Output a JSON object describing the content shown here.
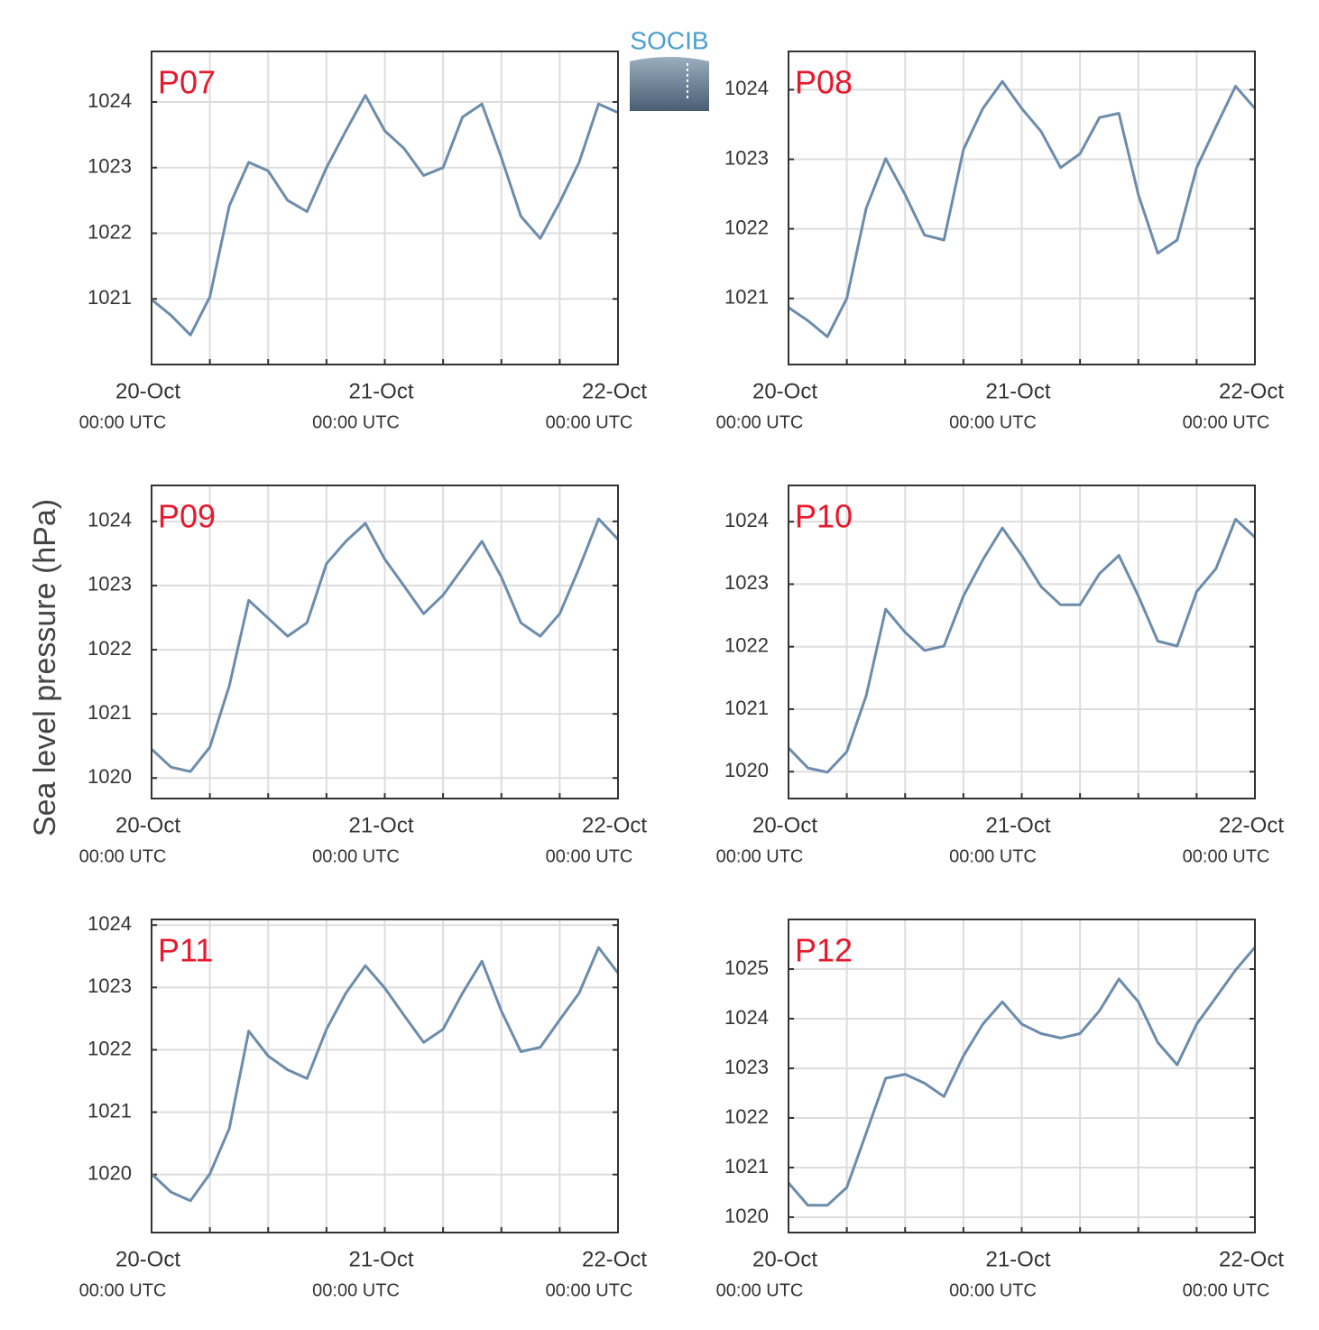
{
  "ylabel": "Sea level pressure (hPa)",
  "logo": "SOCIB",
  "chart_data": [
    {
      "type": "line",
      "title": "P07",
      "x": [
        0,
        2,
        4,
        6,
        8,
        10,
        12,
        14,
        16,
        18,
        20,
        22,
        24,
        26,
        28,
        30,
        32,
        34,
        36,
        38,
        40,
        42,
        44,
        46,
        48
      ],
      "series": [
        {
          "color": "#6c8cac",
          "values": [
            1020.99,
            1020.75,
            1020.45,
            1021.03,
            1022.42,
            1023.08,
            1022.95,
            1022.5,
            1022.33,
            1023.0,
            1023.56,
            1024.1,
            1023.56,
            1023.29,
            1022.88,
            1023.0,
            1023.77,
            1023.97,
            1023.15,
            1022.26,
            1021.92,
            1022.47,
            1023.08,
            1023.97,
            1023.84
          ]
        }
      ],
      "xlim": [
        0,
        48
      ],
      "xticks": [
        {
          "value": 0,
          "label": "20-Oct",
          "sublabel": "00:00 UTC"
        },
        {
          "value": 24,
          "label": "21-Oct",
          "sublabel": "00:00 UTC"
        },
        {
          "value": 48,
          "label": "22-Oct",
          "sublabel": "00:00 UTC"
        }
      ],
      "xminorticks": [
        6,
        12,
        18,
        30,
        36,
        42
      ],
      "ylim": [
        1020.0,
        1024.77
      ],
      "yticks": [
        1021,
        1022,
        1023,
        1024
      ],
      "grid": true
    },
    {
      "type": "line",
      "title": "P08",
      "x": [
        0,
        2,
        4,
        6,
        8,
        10,
        12,
        14,
        16,
        18,
        20,
        22,
        24,
        26,
        28,
        30,
        32,
        34,
        36,
        38,
        40,
        42,
        44,
        46,
        48
      ],
      "series": [
        {
          "color": "#6c8cac",
          "values": [
            1020.87,
            1020.68,
            1020.45,
            1021.0,
            1022.3,
            1023.01,
            1022.49,
            1021.91,
            1021.84,
            1023.14,
            1023.73,
            1024.12,
            1023.73,
            1023.4,
            1022.88,
            1023.08,
            1023.6,
            1023.66,
            1022.49,
            1021.65,
            1021.84,
            1022.88,
            1023.47,
            1024.05,
            1023.73
          ]
        }
      ],
      "xlim": [
        0,
        48
      ],
      "xticks": [
        {
          "value": 0,
          "label": "20-Oct",
          "sublabel": "00:00 UTC"
        },
        {
          "value": 24,
          "label": "21-Oct",
          "sublabel": "00:00 UTC"
        },
        {
          "value": 48,
          "label": "22-Oct",
          "sublabel": "00:00 UTC"
        }
      ],
      "xminorticks": [
        6,
        12,
        18,
        30,
        36,
        42
      ],
      "ylim": [
        1020.05,
        1024.55
      ],
      "yticks": [
        1021,
        1022,
        1023,
        1024
      ],
      "grid": true
    },
    {
      "type": "line",
      "title": "P09",
      "x": [
        0,
        2,
        4,
        6,
        8,
        10,
        12,
        14,
        16,
        18,
        20,
        22,
        24,
        26,
        28,
        30,
        32,
        34,
        36,
        38,
        40,
        42,
        44,
        46,
        48
      ],
      "series": [
        {
          "color": "#6c8cac",
          "values": [
            1020.45,
            1020.17,
            1020.1,
            1020.48,
            1021.44,
            1022.77,
            1022.49,
            1022.21,
            1022.42,
            1023.34,
            1023.69,
            1023.97,
            1023.41,
            1022.99,
            1022.56,
            1022.85,
            1023.27,
            1023.69,
            1023.13,
            1022.42,
            1022.21,
            1022.56,
            1023.27,
            1024.04,
            1023.72
          ]
        }
      ],
      "xlim": [
        0,
        48
      ],
      "xticks": [
        {
          "value": 0,
          "label": "20-Oct",
          "sublabel": "00:00 UTC"
        },
        {
          "value": 24,
          "label": "21-Oct",
          "sublabel": "00:00 UTC"
        },
        {
          "value": 48,
          "label": "22-Oct",
          "sublabel": "00:00 UTC"
        }
      ],
      "xminorticks": [
        6,
        12,
        18,
        30,
        36,
        42
      ],
      "ylim": [
        1019.68,
        1024.56
      ],
      "yticks": [
        1020,
        1021,
        1022,
        1023,
        1024
      ],
      "grid": true
    },
    {
      "type": "line",
      "title": "P10",
      "x": [
        0,
        2,
        4,
        6,
        8,
        10,
        12,
        14,
        16,
        18,
        20,
        22,
        24,
        26,
        28,
        30,
        32,
        34,
        36,
        38,
        40,
        42,
        44,
        46,
        48
      ],
      "series": [
        {
          "color": "#6c8cac",
          "values": [
            1020.38,
            1020.06,
            1019.99,
            1020.32,
            1021.22,
            1022.6,
            1022.23,
            1021.94,
            1022.01,
            1022.81,
            1023.39,
            1023.9,
            1023.46,
            1022.96,
            1022.67,
            1022.67,
            1023.17,
            1023.46,
            1022.81,
            1022.09,
            1022.01,
            1022.88,
            1023.25,
            1024.04,
            1023.75
          ]
        }
      ],
      "xlim": [
        0,
        48
      ],
      "xticks": [
        {
          "value": 0,
          "label": "20-Oct",
          "sublabel": "00:00 UTC"
        },
        {
          "value": 24,
          "label": "21-Oct",
          "sublabel": "00:00 UTC"
        },
        {
          "value": 48,
          "label": "22-Oct",
          "sublabel": "00:00 UTC"
        }
      ],
      "xminorticks": [
        6,
        12,
        18,
        30,
        36,
        42
      ],
      "ylim": [
        1019.57,
        1024.58
      ],
      "yticks": [
        1020,
        1021,
        1022,
        1023,
        1024
      ],
      "grid": true
    },
    {
      "type": "line",
      "title": "P11",
      "x": [
        0,
        2,
        4,
        6,
        8,
        10,
        12,
        14,
        16,
        18,
        20,
        22,
        24,
        26,
        28,
        30,
        32,
        34,
        36,
        38,
        40,
        42,
        44,
        46,
        48
      ],
      "series": [
        {
          "color": "#6c8cac",
          "values": [
            1020.01,
            1019.72,
            1019.58,
            1020.01,
            1020.74,
            1022.3,
            1021.9,
            1021.68,
            1021.54,
            1022.33,
            1022.91,
            1023.35,
            1022.99,
            1022.55,
            1022.12,
            1022.33,
            1022.91,
            1023.42,
            1022.62,
            1021.97,
            1022.04,
            1022.48,
            1022.91,
            1023.64,
            1023.23
          ]
        }
      ],
      "xlim": [
        0,
        48
      ],
      "xticks": [
        {
          "value": 0,
          "label": "20-Oct",
          "sublabel": "00:00 UTC"
        },
        {
          "value": 24,
          "label": "21-Oct",
          "sublabel": "00:00 UTC"
        },
        {
          "value": 48,
          "label": "22-Oct",
          "sublabel": "00:00 UTC"
        }
      ],
      "xminorticks": [
        6,
        12,
        18,
        30,
        36,
        42
      ],
      "ylim": [
        1019.07,
        1024.09
      ],
      "yticks": [
        1020,
        1021,
        1022,
        1023,
        1024
      ],
      "grid": true
    },
    {
      "type": "line",
      "title": "P12",
      "x": [
        0,
        2,
        4,
        6,
        8,
        10,
        12,
        14,
        16,
        18,
        20,
        22,
        24,
        26,
        28,
        30,
        32,
        34,
        36,
        38,
        40,
        42,
        44,
        46,
        48
      ],
      "series": [
        {
          "color": "#6c8cac",
          "values": [
            1020.69,
            1020.24,
            1020.24,
            1020.6,
            1021.7,
            1022.8,
            1022.88,
            1022.7,
            1022.43,
            1023.25,
            1023.89,
            1024.34,
            1023.89,
            1023.7,
            1023.61,
            1023.7,
            1024.16,
            1024.8,
            1024.34,
            1023.52,
            1023.07,
            1023.89,
            1024.43,
            1024.98,
            1025.44
          ]
        }
      ],
      "xlim": [
        0,
        48
      ],
      "xticks": [
        {
          "value": 0,
          "label": "20-Oct",
          "sublabel": "00:00 UTC"
        },
        {
          "value": 24,
          "label": "21-Oct",
          "sublabel": "00:00 UTC"
        },
        {
          "value": 48,
          "label": "22-Oct",
          "sublabel": "00:00 UTC"
        }
      ],
      "xminorticks": [
        6,
        12,
        18,
        30,
        36,
        42
      ],
      "ylim": [
        1019.69,
        1026.0
      ],
      "yticks": [
        1020,
        1021,
        1022,
        1023,
        1024,
        1025
      ],
      "grid": true
    }
  ]
}
